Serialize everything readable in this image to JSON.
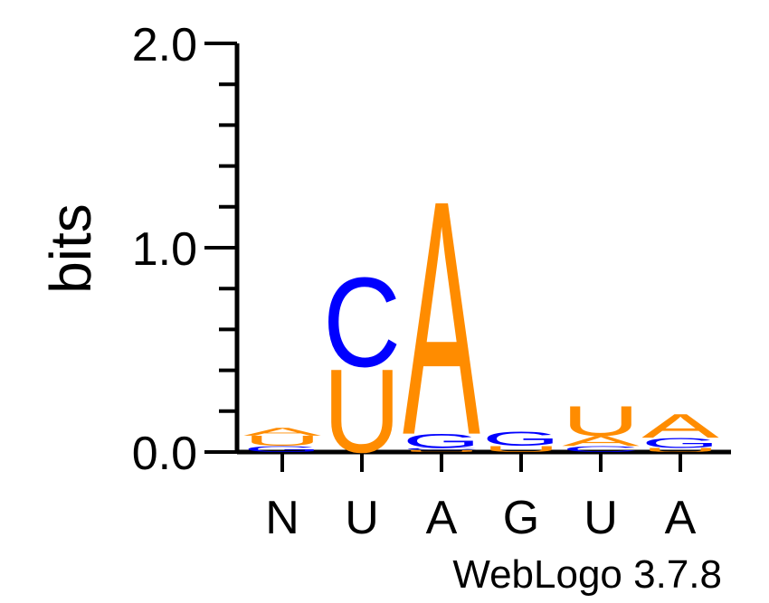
{
  "chart_data": {
    "type": "sequence-logo",
    "ylabel": "bits",
    "ylim": [
      0,
      2.0
    ],
    "yticks": [
      0.0,
      1.0,
      2.0
    ],
    "ytick_labels": [
      "0.0",
      "1.0",
      "2.0"
    ],
    "xtick_labels": [
      "N",
      "U",
      "A",
      "G",
      "U",
      "A"
    ],
    "credit": "WebLogo 3.7.8",
    "colors": {
      "A": "#ff8c00",
      "U": "#ff8c00",
      "C": "#0000ff",
      "G": "#0000ff"
    },
    "positions": [
      {
        "label": "N",
        "stack": [
          {
            "base": "G",
            "bits": 0.03
          },
          {
            "base": "U",
            "bits": 0.05
          },
          {
            "base": "A",
            "bits": 0.04
          }
        ]
      },
      {
        "label": "U",
        "stack": [
          {
            "base": "U",
            "bits": 0.42
          },
          {
            "base": "C",
            "bits": 0.45
          }
        ]
      },
      {
        "label": "A",
        "stack": [
          {
            "base": "U",
            "bits": 0.01
          },
          {
            "base": "C",
            "bits": 0.01
          },
          {
            "base": "G",
            "bits": 0.07
          },
          {
            "base": "A",
            "bits": 1.18
          }
        ]
      },
      {
        "label": "G",
        "stack": [
          {
            "base": "U",
            "bits": 0.03
          },
          {
            "base": "G",
            "bits": 0.07
          }
        ]
      },
      {
        "label": "U",
        "stack": [
          {
            "base": "C",
            "bits": 0.03
          },
          {
            "base": "A",
            "bits": 0.05
          },
          {
            "base": "U",
            "bits": 0.15
          }
        ]
      },
      {
        "label": "A",
        "stack": [
          {
            "base": "U",
            "bits": 0.02
          },
          {
            "base": "G",
            "bits": 0.05
          },
          {
            "base": "A",
            "bits": 0.12
          }
        ]
      }
    ]
  }
}
